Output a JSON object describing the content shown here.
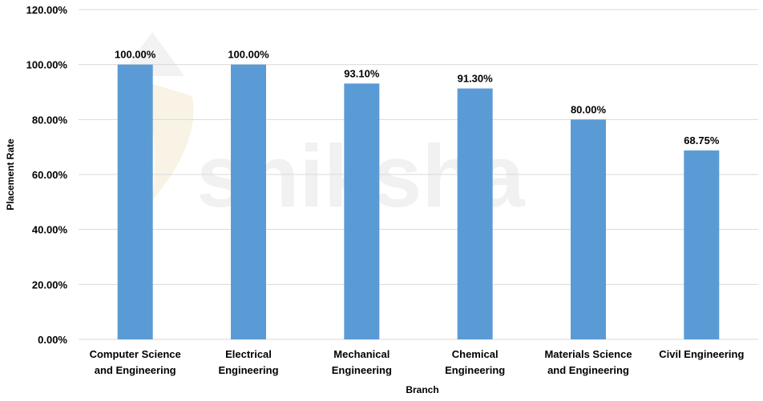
{
  "chart_data": {
    "type": "bar",
    "title": "",
    "xlabel": "Branch",
    "ylabel": "Placement Rate",
    "categories": [
      [
        "Computer Science",
        "and Engineering"
      ],
      [
        "Electrical",
        "Engineering"
      ],
      [
        "Mechanical",
        "Engineering"
      ],
      [
        "Chemical",
        "Engineering"
      ],
      [
        "Materials Science",
        "and Engineering"
      ],
      [
        "Civil Engineering"
      ]
    ],
    "values": [
      100.0,
      100.0,
      93.1,
      91.3,
      80.0,
      68.75
    ],
    "data_labels": [
      "100.00%",
      "100.00%",
      "93.10%",
      "91.30%",
      "80.00%",
      "68.75%"
    ],
    "ylim": [
      0,
      120
    ],
    "y_ticks": [
      0,
      20,
      40,
      60,
      80,
      100,
      120
    ],
    "y_tick_labels": [
      "0.00%",
      "20.00%",
      "40.00%",
      "60.00%",
      "80.00%",
      "100.00%",
      "120.00%"
    ],
    "grid": true,
    "legend": "none",
    "bar_color": "#5b9bd5",
    "grid_color": "#d9d9d9"
  },
  "watermark": {
    "text": "shiksha"
  }
}
